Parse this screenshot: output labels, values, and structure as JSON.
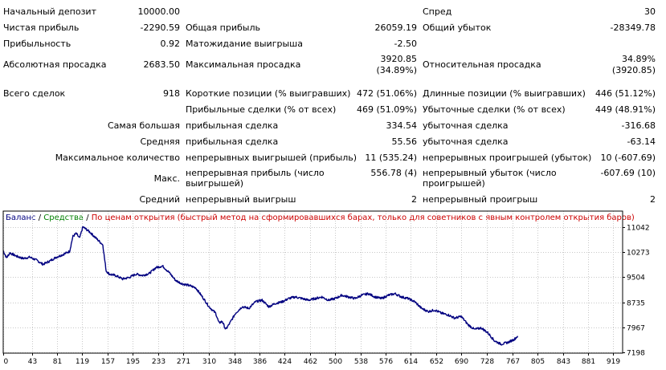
{
  "stats": {
    "row1": {
      "initial_deposit_label": "Начальный депозит",
      "initial_deposit": "10000.00",
      "spread_label": "Спред",
      "spread": "30"
    },
    "row2": {
      "net_profit_label": "Чистая прибыль",
      "net_profit": "-2290.59",
      "gross_profit_label": "Общая прибыль",
      "gross_profit": "26059.19",
      "gross_loss_label": "Общий убыток",
      "gross_loss": "-28349.78"
    },
    "row3": {
      "profit_factor_label": "Прибыльность",
      "profit_factor": "0.92",
      "expected_payoff_label": "Матожидание выигрыша",
      "expected_payoff": "-2.50"
    },
    "row4": {
      "abs_drawdown_label": "Абсолютная просадка",
      "abs_drawdown": "2683.50",
      "max_drawdown_label": "Максимальная просадка",
      "max_drawdown": "3920.85",
      "max_drawdown_pct": "(34.89%)",
      "rel_drawdown_label": "Относительная просадка",
      "rel_drawdown": "34.89%",
      "rel_drawdown_val": "(3920.85)"
    },
    "row5": {
      "total_trades_label": "Всего сделок",
      "total_trades": "918",
      "short_label": "Короткие позиции (% выигравших)",
      "short": "472 (51.06%)",
      "long_label": "Длинные позиции (% выигравших)",
      "long": "446 (51.12%)"
    },
    "row6": {
      "profit_trades_label": "Прибыльные сделки (% от всех)",
      "profit_trades": "469 (51.09%)",
      "loss_trades_label": "Убыточные сделки (% от всех)",
      "loss_trades": "449 (48.91%)"
    },
    "row7": {
      "label": "Самая большая",
      "profit_label": "прибыльная сделка",
      "profit": "334.54",
      "loss_label": "убыточная сделка",
      "loss": "-316.68"
    },
    "row8": {
      "label": "Средняя",
      "profit_label": "прибыльная сделка",
      "profit": "55.56",
      "loss_label": "убыточная сделка",
      "loss": "-63.14"
    },
    "row9": {
      "label": "Максимальное количество",
      "profit_label": "непрерывных выигрышей (прибыль)",
      "profit": "11 (535.24)",
      "loss_label": "непрерывных проигрышей (убыток)",
      "loss": "10 (-607.69)"
    },
    "row10": {
      "label": "Макс.",
      "profit_label": "непрерывная прибыль (число выигрышей)",
      "profit": "556.78 (4)",
      "loss_label": "непрерывный убыток (число проигрышей)",
      "loss": "-607.69 (10)"
    },
    "row11": {
      "label": "Средний",
      "profit_label": "непрерывный выигрыш",
      "profit": "2",
      "loss_label": "непрерывный проигрыш",
      "loss": "2"
    }
  },
  "legend": {
    "balance": "Баланс",
    "sep1": " / ",
    "equity": "Средства",
    "sep2": " / ",
    "mode": "По ценам открытия (быстрый метод на сформировавшихся барах, только для советников с явным контролем открытия баров)"
  },
  "colors": {
    "balance": "#000080",
    "equity": "#008000",
    "mode": "#cc0000",
    "grid": "#c8c8c8",
    "frame": "#000000"
  },
  "chart_data": {
    "type": "line",
    "title": "",
    "xlabel": "",
    "ylabel": "",
    "x_ticks": [
      0,
      43,
      81,
      119,
      157,
      195,
      233,
      271,
      310,
      348,
      386,
      424,
      462,
      500,
      538,
      576,
      614,
      652,
      690,
      728,
      767,
      805,
      843,
      881,
      919
    ],
    "y_ticks": [
      11042,
      10273,
      9504,
      8735,
      7967,
      7198
    ],
    "xlim": [
      0,
      933
    ],
    "ylim": [
      7198,
      11300
    ],
    "grid": true,
    "series": [
      {
        "name": "Баланс",
        "color": "#000080",
        "points": [
          [
            0,
            10320
          ],
          [
            5,
            10100
          ],
          [
            10,
            10250
          ],
          [
            20,
            10150
          ],
          [
            30,
            10080
          ],
          [
            40,
            10120
          ],
          [
            50,
            10030
          ],
          [
            60,
            9900
          ],
          [
            70,
            10000
          ],
          [
            80,
            10120
          ],
          [
            90,
            10200
          ],
          [
            100,
            10300
          ],
          [
            105,
            10760
          ],
          [
            110,
            10850
          ],
          [
            115,
            10700
          ],
          [
            120,
            11050
          ],
          [
            130,
            10900
          ],
          [
            140,
            10700
          ],
          [
            150,
            10500
          ],
          [
            155,
            9700
          ],
          [
            160,
            9600
          ],
          [
            170,
            9550
          ],
          [
            180,
            9450
          ],
          [
            190,
            9500
          ],
          [
            200,
            9600
          ],
          [
            210,
            9560
          ],
          [
            220,
            9620
          ],
          [
            230,
            9800
          ],
          [
            240,
            9850
          ],
          [
            250,
            9650
          ],
          [
            260,
            9400
          ],
          [
            270,
            9300
          ],
          [
            280,
            9250
          ],
          [
            290,
            9180
          ],
          [
            300,
            8900
          ],
          [
            310,
            8600
          ],
          [
            320,
            8400
          ],
          [
            325,
            8100
          ],
          [
            330,
            8150
          ],
          [
            335,
            7900
          ],
          [
            340,
            8050
          ],
          [
            350,
            8400
          ],
          [
            360,
            8600
          ],
          [
            370,
            8550
          ],
          [
            380,
            8750
          ],
          [
            390,
            8800
          ],
          [
            400,
            8600
          ],
          [
            410,
            8700
          ],
          [
            420,
            8750
          ],
          [
            430,
            8850
          ],
          [
            440,
            8900
          ],
          [
            450,
            8850
          ],
          [
            460,
            8800
          ],
          [
            470,
            8850
          ],
          [
            480,
            8900
          ],
          [
            490,
            8800
          ],
          [
            500,
            8850
          ],
          [
            510,
            8950
          ],
          [
            520,
            8900
          ],
          [
            530,
            8850
          ],
          [
            540,
            8950
          ],
          [
            550,
            9000
          ],
          [
            560,
            8900
          ],
          [
            570,
            8850
          ],
          [
            580,
            8950
          ],
          [
            590,
            9000
          ],
          [
            600,
            8900
          ],
          [
            610,
            8850
          ],
          [
            620,
            8750
          ],
          [
            630,
            8550
          ],
          [
            640,
            8450
          ],
          [
            650,
            8500
          ],
          [
            660,
            8400
          ],
          [
            670,
            8350
          ],
          [
            680,
            8250
          ],
          [
            690,
            8300
          ],
          [
            700,
            8050
          ],
          [
            710,
            7900
          ],
          [
            720,
            7950
          ],
          [
            730,
            7800
          ],
          [
            740,
            7550
          ],
          [
            750,
            7450
          ],
          [
            760,
            7500
          ],
          [
            770,
            7600
          ],
          [
            775,
            7700
          ]
        ]
      }
    ]
  }
}
